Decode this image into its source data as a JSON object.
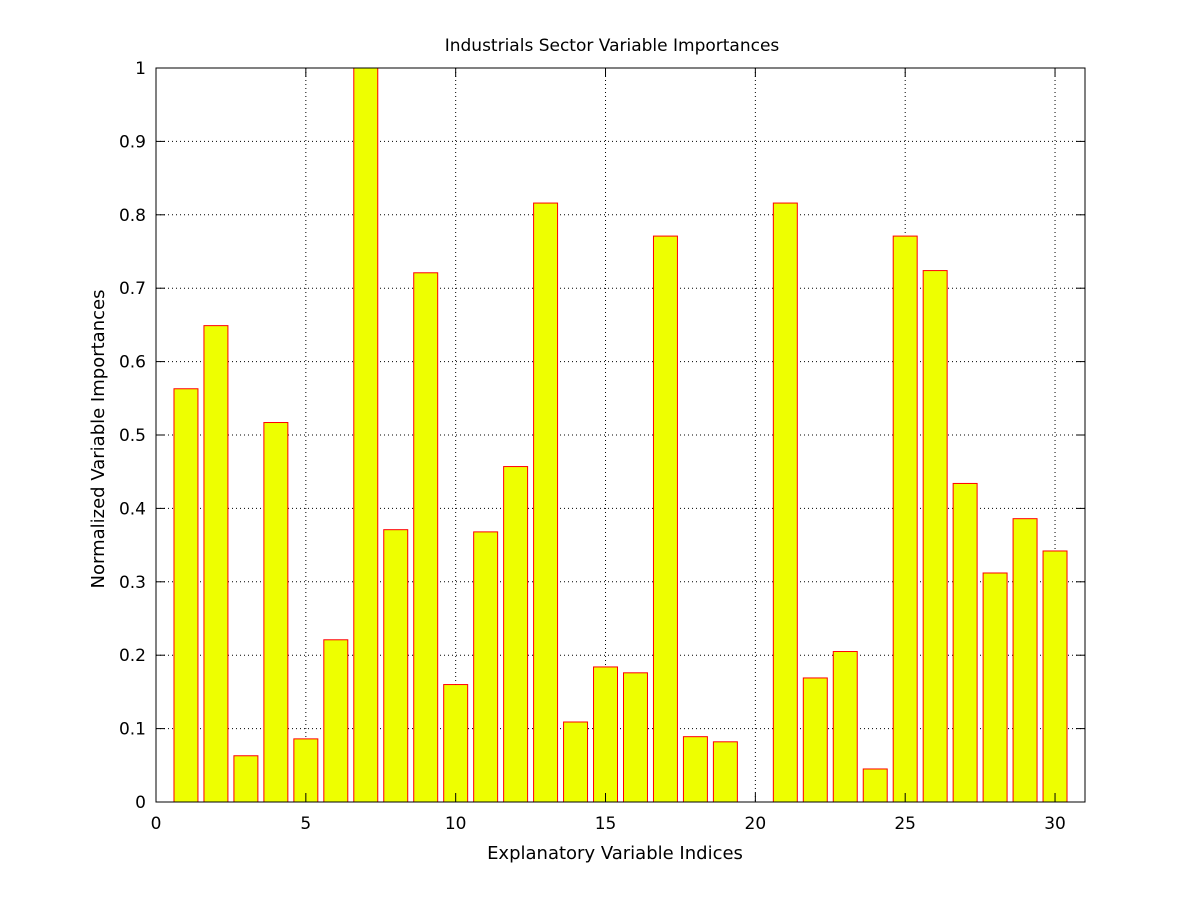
{
  "chart_data": {
    "type": "bar",
    "title": "Industrials Sector Variable Importances",
    "xlabel": "Explanatory Variable Indices",
    "ylabel": "Normalized Variable Importances",
    "x": [
      1,
      2,
      3,
      4,
      5,
      6,
      7,
      8,
      9,
      10,
      11,
      12,
      13,
      14,
      15,
      16,
      17,
      18,
      19,
      20,
      21,
      22,
      23,
      24,
      25,
      26,
      27,
      28,
      29,
      30
    ],
    "values": [
      0.563,
      0.649,
      0.063,
      0.517,
      0.086,
      0.221,
      1.0,
      0.371,
      0.721,
      0.16,
      0.368,
      0.457,
      0.816,
      0.109,
      0.184,
      0.176,
      0.771,
      0.089,
      0.082,
      0.0,
      0.816,
      0.169,
      0.205,
      0.045,
      0.771,
      0.724,
      0.434,
      0.312,
      0.386,
      0.342
    ],
    "xlim": [
      0,
      31
    ],
    "ylim": [
      0,
      1
    ],
    "xticks": [
      "0",
      "5",
      "10",
      "15",
      "20",
      "25",
      "30"
    ],
    "yticks": [
      "0",
      "0.1",
      "0.2",
      "0.3",
      "0.4",
      "0.5",
      "0.6",
      "0.7",
      "0.8",
      "0.9",
      "1"
    ],
    "grid": true,
    "bar_color": "#eeff00",
    "bar_edge_color": "#ff0000"
  }
}
